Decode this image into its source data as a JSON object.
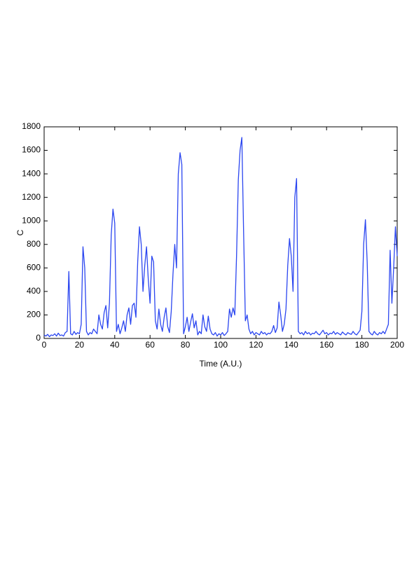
{
  "chart_data": {
    "type": "line",
    "x_label": "Time (A.U.)",
    "y_label": "C",
    "xlim": [
      0,
      200
    ],
    "xticks": [
      0,
      20,
      40,
      60,
      80,
      100,
      120,
      140,
      160,
      180,
      200
    ],
    "ylim": [
      0,
      1800
    ],
    "yticks": [
      0,
      200,
      400,
      600,
      800,
      1000,
      1200,
      1400,
      1600,
      1800
    ],
    "grid": false,
    "x": [
      0,
      1,
      2,
      3,
      4,
      5,
      6,
      7,
      8,
      9,
      10,
      11,
      12,
      13,
      14,
      15,
      16,
      17,
      18,
      19,
      20,
      21,
      22,
      23,
      24,
      25,
      26,
      27,
      28,
      29,
      30,
      31,
      32,
      33,
      34,
      35,
      36,
      37,
      38,
      39,
      40,
      41,
      42,
      43,
      44,
      45,
      46,
      47,
      48,
      49,
      50,
      51,
      52,
      53,
      54,
      55,
      56,
      57,
      58,
      59,
      60,
      61,
      62,
      63,
      64,
      65,
      66,
      67,
      68,
      69,
      70,
      71,
      72,
      73,
      74,
      75,
      76,
      77,
      78,
      79,
      80,
      81,
      82,
      83,
      84,
      85,
      86,
      87,
      88,
      89,
      90,
      91,
      92,
      93,
      94,
      95,
      96,
      97,
      98,
      99,
      100,
      101,
      102,
      103,
      104,
      105,
      106,
      107,
      108,
      109,
      110,
      111,
      112,
      113,
      114,
      115,
      116,
      117,
      118,
      119,
      120,
      121,
      122,
      123,
      124,
      125,
      126,
      127,
      128,
      129,
      130,
      131,
      132,
      133,
      134,
      135,
      136,
      137,
      138,
      139,
      140,
      141,
      142,
      143,
      144,
      145,
      146,
      147,
      148,
      149,
      150,
      151,
      152,
      153,
      154,
      155,
      156,
      157,
      158,
      159,
      160,
      161,
      162,
      163,
      164,
      165,
      166,
      167,
      168,
      169,
      170,
      171,
      172,
      173,
      174,
      175,
      176,
      177,
      178,
      179,
      180,
      181,
      182,
      183,
      184,
      185,
      186,
      187,
      188,
      189,
      190,
      191,
      192,
      193,
      194,
      195,
      196,
      197,
      198,
      199,
      200
    ],
    "series": [
      {
        "color": "#2b46f0",
        "values": [
          30,
          20,
          35,
          15,
          30,
          25,
          40,
          20,
          45,
          25,
          30,
          20,
          50,
          60,
          570,
          40,
          30,
          60,
          35,
          50,
          40,
          120,
          780,
          600,
          60,
          30,
          50,
          40,
          80,
          60,
          40,
          200,
          120,
          80,
          220,
          280,
          90,
          300,
          880,
          1100,
          980,
          60,
          120,
          40,
          90,
          150,
          60,
          200,
          260,
          120,
          280,
          300,
          180,
          650,
          950,
          800,
          400,
          620,
          780,
          500,
          300,
          700,
          650,
          150,
          80,
          250,
          120,
          60,
          180,
          260,
          100,
          50,
          230,
          550,
          800,
          600,
          1400,
          1580,
          1480,
          40,
          100,
          180,
          60,
          140,
          210,
          90,
          150,
          30,
          60,
          40,
          200,
          100,
          60,
          190,
          80,
          40,
          30,
          50,
          20,
          40,
          30,
          50,
          25,
          40,
          60,
          250,
          180,
          260,
          200,
          700,
          1350,
          1600,
          1710,
          900,
          150,
          200,
          80,
          40,
          60,
          30,
          50,
          40,
          30,
          60,
          40,
          50,
          30,
          45,
          40,
          60,
          110,
          50,
          90,
          310,
          200,
          60,
          120,
          250,
          620,
          850,
          700,
          400,
          1200,
          1360,
          60,
          40,
          50,
          30,
          60,
          40,
          50,
          30,
          45,
          40,
          60,
          40,
          30,
          50,
          70,
          40,
          50,
          30,
          45,
          40,
          60,
          35,
          50,
          40,
          30,
          55,
          40,
          30,
          50,
          40,
          35,
          60,
          40,
          30,
          50,
          70,
          230,
          800,
          1010,
          650,
          60,
          40,
          30,
          60,
          40,
          30,
          50,
          40,
          60,
          40,
          80,
          120,
          750,
          300,
          600,
          950,
          700
        ]
      }
    ]
  }
}
